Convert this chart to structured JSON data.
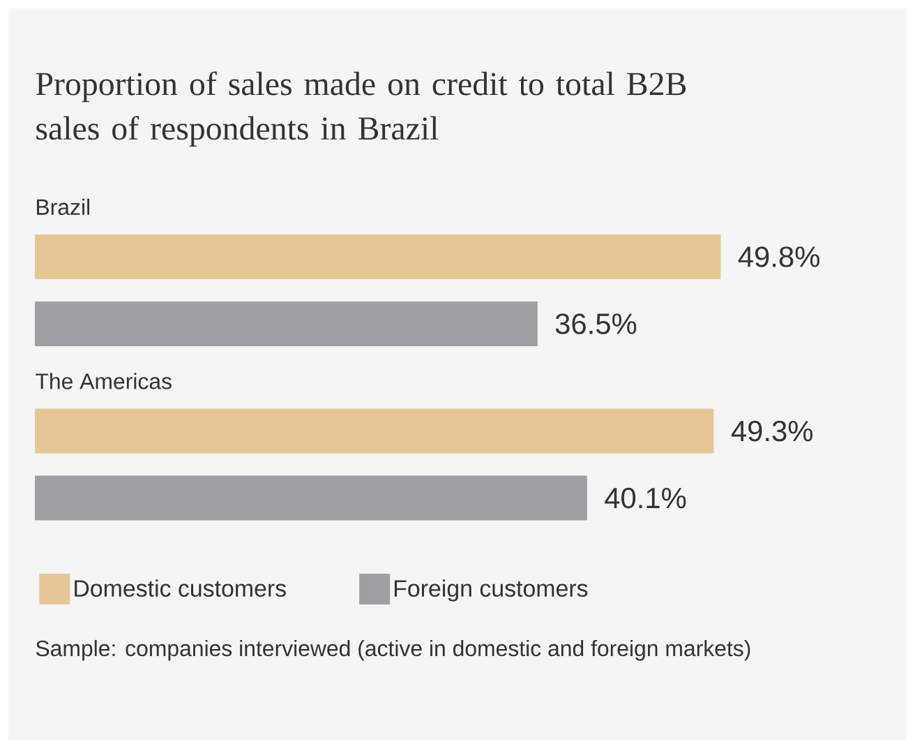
{
  "chart_data": {
    "type": "bar",
    "orientation": "horizontal",
    "title": "Proportion of sales made on credit to total B2B sales of respondents in Brazil",
    "categories": [
      "Brazil",
      "The Americas"
    ],
    "series": [
      {
        "name": "Domestic customers",
        "color": "#e5c795",
        "values": [
          49.8,
          49.3
        ],
        "value_labels": [
          "49.8%",
          "49.3%"
        ]
      },
      {
        "name": "Foreign customers",
        "color": "#9e9fa3",
        "values": [
          36.5,
          40.1
        ],
        "value_labels": [
          "36.5%",
          "40.1%"
        ]
      }
    ],
    "legend": "bottom",
    "annotations": [
      "Sample: companies interviewed (active in domestic and foreign markets)"
    ]
  }
}
